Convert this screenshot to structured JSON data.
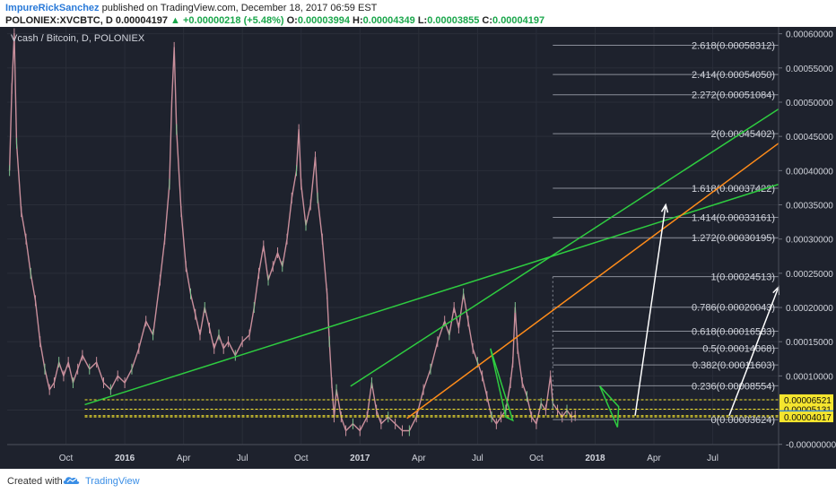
{
  "header": {
    "author": "ImpureRickSanchez",
    "published": "published on TradingView.com, December 18, 2017 06:59 EST",
    "symbol_line": "POLONIEX:XVCBTC, D",
    "last": "0.00004197",
    "change": "+0.00000218 (+5.48%)",
    "o_label": "O:",
    "o": "0.00003994",
    "h_label": "H:",
    "h": "0.00004349",
    "l_label": "L:",
    "l": "0.00003855",
    "c_label": "C:",
    "c": "0.00004197"
  },
  "footer": {
    "created": "Created with",
    "brand": "TradingView",
    "logo_icon": "tradingview-cloud-icon"
  },
  "chart_data": {
    "type": "line",
    "title": "Vcash / Bitcoin, D, POLONIEX",
    "x_ticks": [
      {
        "label": "Oct",
        "t": 2015.75
      },
      {
        "label": "2016",
        "t": 2016.0
      },
      {
        "label": "Apr",
        "t": 2016.25
      },
      {
        "label": "Jul",
        "t": 2016.5
      },
      {
        "label": "Oct",
        "t": 2016.75
      },
      {
        "label": "2017",
        "t": 2017.0
      },
      {
        "label": "Apr",
        "t": 2017.25
      },
      {
        "label": "Jul",
        "t": 2017.5
      },
      {
        "label": "Oct",
        "t": 2017.75
      },
      {
        "label": "2018",
        "t": 2018.0
      },
      {
        "label": "Apr",
        "t": 2018.25
      },
      {
        "label": "Jul",
        "t": 2018.5
      }
    ],
    "xlim": [
      2015.5,
      2018.78
    ],
    "ylim": [
      -3.5e-07,
      0.00061
    ],
    "y_ticks": [
      "0.00060000",
      "0.00055000",
      "0.00050000",
      "0.00045000",
      "0.00040000",
      "0.00035000",
      "0.00030000",
      "0.00025000",
      "0.00020000",
      "0.00015000",
      "0.00010000",
      "0.00005000",
      "-0.00000000"
    ],
    "y_tick_values": [
      0.0006,
      0.00055,
      0.0005,
      0.00045,
      0.0004,
      0.00035,
      0.0003,
      0.00025,
      0.0002,
      0.00015,
      0.0001,
      5e-05,
      0.0
    ],
    "price_series": [
      [
        2015.51,
        0.0004
      ],
      [
        2015.52,
        0.00052
      ],
      [
        2015.53,
        0.0006
      ],
      [
        2015.54,
        0.00044
      ],
      [
        2015.56,
        0.00034
      ],
      [
        2015.58,
        0.0003
      ],
      [
        2015.6,
        0.00025
      ],
      [
        2015.62,
        0.00021
      ],
      [
        2015.64,
        0.00015
      ],
      [
        2015.66,
        0.00011
      ],
      [
        2015.68,
        8e-05
      ],
      [
        2015.7,
        9e-05
      ],
      [
        2015.72,
        0.00012
      ],
      [
        2015.74,
        0.0001
      ],
      [
        2015.76,
        0.00012
      ],
      [
        2015.78,
        9e-05
      ],
      [
        2015.8,
        0.00011
      ],
      [
        2015.82,
        0.00013
      ],
      [
        2015.85,
        0.00011
      ],
      [
        2015.88,
        0.00012
      ],
      [
        2015.91,
        9e-05
      ],
      [
        2015.94,
        8e-05
      ],
      [
        2015.97,
        0.0001
      ],
      [
        2016.0,
        9e-05
      ],
      [
        2016.03,
        0.00011
      ],
      [
        2016.06,
        0.00014
      ],
      [
        2016.09,
        0.00018
      ],
      [
        2016.12,
        0.00016
      ],
      [
        2016.15,
        0.00024
      ],
      [
        2016.17,
        0.0003
      ],
      [
        2016.19,
        0.00038
      ],
      [
        2016.2,
        0.0005
      ],
      [
        2016.21,
        0.00058
      ],
      [
        2016.22,
        0.00046
      ],
      [
        2016.24,
        0.00034
      ],
      [
        2016.26,
        0.00026
      ],
      [
        2016.28,
        0.00022
      ],
      [
        2016.3,
        0.00019
      ],
      [
        2016.32,
        0.00016
      ],
      [
        2016.34,
        0.0002
      ],
      [
        2016.36,
        0.00017
      ],
      [
        2016.38,
        0.00014
      ],
      [
        2016.4,
        0.00016
      ],
      [
        2016.42,
        0.00014
      ],
      [
        2016.44,
        0.00015
      ],
      [
        2016.47,
        0.00013
      ],
      [
        2016.5,
        0.00015
      ],
      [
        2016.53,
        0.00016
      ],
      [
        2016.55,
        0.0002
      ],
      [
        2016.57,
        0.00025
      ],
      [
        2016.59,
        0.00029
      ],
      [
        2016.61,
        0.00024
      ],
      [
        2016.63,
        0.00026
      ],
      [
        2016.65,
        0.00028
      ],
      [
        2016.67,
        0.00026
      ],
      [
        2016.69,
        0.0003
      ],
      [
        2016.71,
        0.00036
      ],
      [
        2016.73,
        0.0004
      ],
      [
        2016.74,
        0.00046
      ],
      [
        2016.75,
        0.00038
      ],
      [
        2016.77,
        0.00032
      ],
      [
        2016.79,
        0.00035
      ],
      [
        2016.81,
        0.00042
      ],
      [
        2016.82,
        0.00036
      ],
      [
        2016.84,
        0.0003
      ],
      [
        2016.86,
        0.00022
      ],
      [
        2016.87,
        0.00015
      ],
      [
        2016.88,
        9e-05
      ],
      [
        2016.89,
        4e-05
      ],
      [
        2016.9,
        8e-05
      ],
      [
        2016.92,
        4e-05
      ],
      [
        2016.94,
        2e-05
      ],
      [
        2016.97,
        3e-05
      ],
      [
        2017.0,
        2e-05
      ],
      [
        2017.03,
        4e-05
      ],
      [
        2017.05,
        9e-05
      ],
      [
        2017.07,
        5e-05
      ],
      [
        2017.09,
        3e-05
      ],
      [
        2017.12,
        4e-05
      ],
      [
        2017.15,
        3e-05
      ],
      [
        2017.18,
        2e-05
      ],
      [
        2017.21,
        2e-05
      ],
      [
        2017.24,
        4e-05
      ],
      [
        2017.27,
        8e-05
      ],
      [
        2017.3,
        0.00011
      ],
      [
        2017.33,
        0.00015
      ],
      [
        2017.36,
        0.00018
      ],
      [
        2017.38,
        0.00016
      ],
      [
        2017.4,
        0.0002
      ],
      [
        2017.42,
        0.00017
      ],
      [
        2017.44,
        0.00022
      ],
      [
        2017.46,
        0.00018
      ],
      [
        2017.48,
        0.00014
      ],
      [
        2017.5,
        0.00012
      ],
      [
        2017.52,
        0.0001
      ],
      [
        2017.54,
        7e-05
      ],
      [
        2017.56,
        4e-05
      ],
      [
        2017.58,
        3e-05
      ],
      [
        2017.6,
        4e-05
      ],
      [
        2017.62,
        5e-05
      ],
      [
        2017.64,
        9e-05
      ],
      [
        2017.65,
        0.00012
      ],
      [
        2017.66,
        0.0002
      ],
      [
        2017.67,
        0.00014
      ],
      [
        2017.69,
        9e-05
      ],
      [
        2017.71,
        7e-05
      ],
      [
        2017.73,
        4e-05
      ],
      [
        2017.75,
        3e-05
      ],
      [
        2017.77,
        6e-05
      ],
      [
        2017.79,
        5e-05
      ],
      [
        2017.81,
        0.0001
      ],
      [
        2017.82,
        6e-05
      ],
      [
        2017.84,
        5e-05
      ],
      [
        2017.86,
        4e-05
      ],
      [
        2017.88,
        5e-05
      ],
      [
        2017.9,
        4e-05
      ],
      [
        2017.915,
        4.19e-05
      ]
    ],
    "support_lines": [
      6.521e-05,
      5.131e-05,
      4.197e-05,
      4.017e-05
    ],
    "price_labels": [
      {
        "text": "0.00006521",
        "value": 6.521e-05
      },
      {
        "text": "0.00005131",
        "value": 5.131e-05
      },
      {
        "text": "0.00004197",
        "value": 4.197e-05,
        "highlight": true
      },
      {
        "text": "0.00004017",
        "value": 4.017e-05
      }
    ],
    "fib_levels": [
      {
        "text": "2.618(0.00058312)",
        "value": 0.00058312
      },
      {
        "text": "2.414(0.00054050)",
        "value": 0.0005405
      },
      {
        "text": "2.272(0.00051084)",
        "value": 0.00051084
      },
      {
        "text": "2(0.00045402)",
        "value": 0.00045402
      },
      {
        "text": "1.618(0.00037422)",
        "value": 0.00037422
      },
      {
        "text": "1.414(0.00033161)",
        "value": 0.00033161
      },
      {
        "text": "1.272(0.00030195)",
        "value": 0.00030195
      },
      {
        "text": "1(0.00024513)",
        "value": 0.00024513
      },
      {
        "text": "0.786(0.00020043)",
        "value": 0.00020043
      },
      {
        "text": "0.618(0.00016533)",
        "value": 0.00016533
      },
      {
        "text": "0.5(0.00014068)",
        "value": 0.00014068
      },
      {
        "text": "0.382(0.00011603)",
        "value": 0.00011603
      },
      {
        "text": "0.236(0.00008554)",
        "value": 8.554e-05
      },
      {
        "text": "0(0.00003624)",
        "value": 3.624e-05
      }
    ],
    "fib_x_start": 2017.82,
    "fib_x_end": 2018.78,
    "trendlines": [
      {
        "color": "#2ecc40",
        "x1": 2015.83,
        "y1": 5.8e-05,
        "x2": 2018.78,
        "y2": 0.00038
      },
      {
        "color": "#2ecc40",
        "x1": 2016.96,
        "y1": 8.5e-05,
        "x2": 2018.78,
        "y2": 0.00049
      },
      {
        "color": "#ff8c1a",
        "x1": 2017.2,
        "y1": 3.8e-05,
        "x2": 2018.78,
        "y2": 0.00044
      }
    ],
    "triangles": [
      {
        "points": [
          [
            2017.555,
            0.00014
          ],
          [
            2017.65,
            3.5e-05
          ],
          [
            2017.62,
            4e-05
          ]
        ]
      },
      {
        "points": [
          [
            2018.02,
            8.5e-05
          ],
          [
            2018.095,
            2.5e-05
          ],
          [
            2018.1,
            5.5e-05
          ]
        ]
      }
    ],
    "arrows": [
      {
        "x1": 2018.17,
        "y1": 4.2e-05,
        "x2": 2018.3,
        "y2": 0.00035
      },
      {
        "x1": 2018.57,
        "y1": 4.2e-05,
        "x2": 2018.78,
        "y2": 0.00023
      }
    ],
    "colors": {
      "background": "#1e222d",
      "candles": "#c98f9c",
      "support": "#f5e52e",
      "grid": "#2a2e39"
    }
  }
}
